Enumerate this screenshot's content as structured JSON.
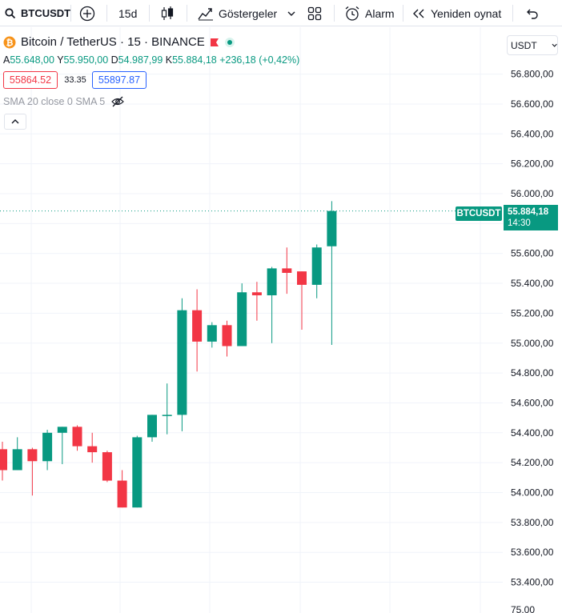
{
  "toolbar": {
    "symbol": "BTCUSDT",
    "interval": "15d",
    "indicators_label": "Göstergeler",
    "alarm_label": "Alarm",
    "replay_label": "Yeniden oynat"
  },
  "legend": {
    "title": "Bitcoin / TetherUS · 15 · BINANCE",
    "ohlc": {
      "open_key": "A",
      "open": "55.648,00",
      "high_key": "Y",
      "high": "55.950,00",
      "low_key": "D",
      "low": "54.987,99",
      "close_key": "K",
      "close": "55.884,18",
      "change": "+236,18 (+0,42%)"
    },
    "bid": "55864.52",
    "spread": "33.35",
    "ask": "55897.87",
    "sma": "SMA 20 close 0 SMA 5"
  },
  "currency": "USDT",
  "price_axis": {
    "labels": [
      "56.800,00",
      "56.600,00",
      "56.400,00",
      "56.200,00",
      "56.000,00",
      "55.600,00",
      "55.400,00",
      "55.200,00",
      "55.000,00",
      "54.800,00",
      "54.600,00",
      "54.400,00",
      "54.200,00",
      "54.000,00",
      "53.800,00",
      "53.600,00",
      "53.400,00"
    ],
    "bottom_partial": "75.00"
  },
  "last_price": {
    "symbol": "BTCUSDT",
    "price": "55.884,18",
    "countdown": "14:30"
  },
  "colors": {
    "up": "#089981",
    "down": "#f23645",
    "grid": "#f0f3fa"
  },
  "chart_data": {
    "type": "candlestick",
    "y_range": [
      53300,
      56900
    ],
    "candles": [
      {
        "o": 54290,
        "h": 54340,
        "l": 54080,
        "c": 54150
      },
      {
        "o": 54150,
        "h": 54370,
        "l": 54150,
        "c": 54290
      },
      {
        "o": 54290,
        "h": 54300,
        "l": 53980,
        "c": 54210
      },
      {
        "o": 54210,
        "h": 54420,
        "l": 54150,
        "c": 54400
      },
      {
        "o": 54400,
        "h": 54440,
        "l": 54190,
        "c": 54440
      },
      {
        "o": 54440,
        "h": 54450,
        "l": 54280,
        "c": 54310
      },
      {
        "o": 54310,
        "h": 54400,
        "l": 54200,
        "c": 54270
      },
      {
        "o": 54270,
        "h": 54280,
        "l": 54070,
        "c": 54080
      },
      {
        "o": 54080,
        "h": 54150,
        "l": 53900,
        "c": 53900
      },
      {
        "o": 53900,
        "h": 54380,
        "l": 53900,
        "c": 54370
      },
      {
        "o": 54370,
        "h": 54520,
        "l": 54340,
        "c": 54520
      },
      {
        "o": 54520,
        "h": 54730,
        "l": 54390,
        "c": 54520
      },
      {
        "o": 54520,
        "h": 55300,
        "l": 54410,
        "c": 55220
      },
      {
        "o": 55220,
        "h": 55360,
        "l": 54810,
        "c": 55010
      },
      {
        "o": 55010,
        "h": 55140,
        "l": 54970,
        "c": 55120
      },
      {
        "o": 55120,
        "h": 55150,
        "l": 54910,
        "c": 54980
      },
      {
        "o": 54980,
        "h": 55400,
        "l": 54980,
        "c": 55340
      },
      {
        "o": 55340,
        "h": 55410,
        "l": 55150,
        "c": 55320
      },
      {
        "o": 55320,
        "h": 55510,
        "l": 55000,
        "c": 55500
      },
      {
        "o": 55500,
        "h": 55640,
        "l": 55330,
        "c": 55470
      },
      {
        "o": 55480,
        "h": 55480,
        "l": 55090,
        "c": 55390
      },
      {
        "o": 55390,
        "h": 55660,
        "l": 55300,
        "c": 55640
      },
      {
        "o": 55648,
        "h": 55950,
        "l": 54988,
        "c": 55884
      }
    ]
  }
}
